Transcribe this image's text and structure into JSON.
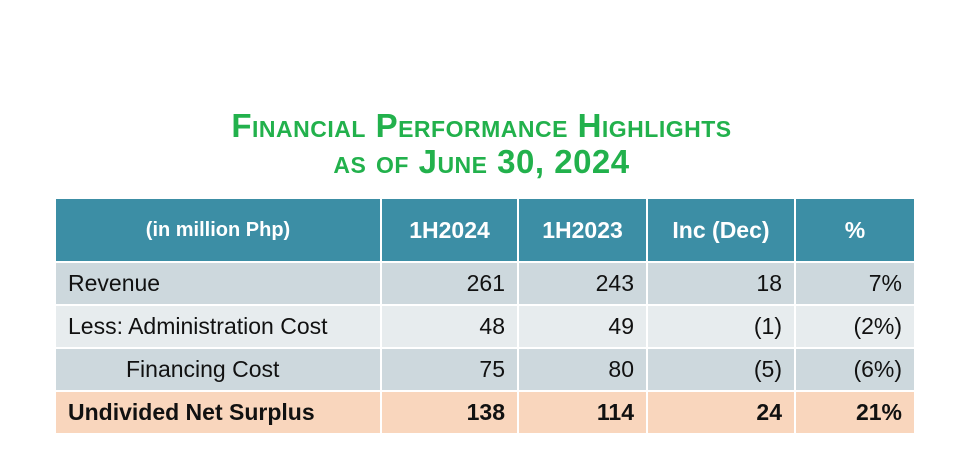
{
  "title": {
    "line1": "Financial Performance Highlights",
    "line2": "as of June 30, 2024"
  },
  "table": {
    "headers": [
      "(in million Php)",
      "1H2024",
      "1H2023",
      "Inc (Dec)",
      "%"
    ],
    "rows": [
      {
        "label": "Revenue",
        "h2024": "261",
        "h2023": "243",
        "inc": "18",
        "pct": "7%"
      },
      {
        "label": "Less: Administration Cost",
        "h2024": "48",
        "h2023": "49",
        "inc": "(1)",
        "pct": "(2%)"
      },
      {
        "label": "Financing Cost",
        "h2024": "75",
        "h2023": "80",
        "inc": "(5)",
        "pct": "(6%)"
      },
      {
        "label": "Undivided Net Surplus",
        "h2024": "138",
        "h2023": "114",
        "inc": "24",
        "pct": "21%"
      }
    ]
  },
  "colors": {
    "title_green": "#22b14c",
    "header_teal": "#3c8ea5",
    "row_dark": "#cdd8dd",
    "row_light": "#e7ecee",
    "total_peach": "#f9d6bd"
  }
}
